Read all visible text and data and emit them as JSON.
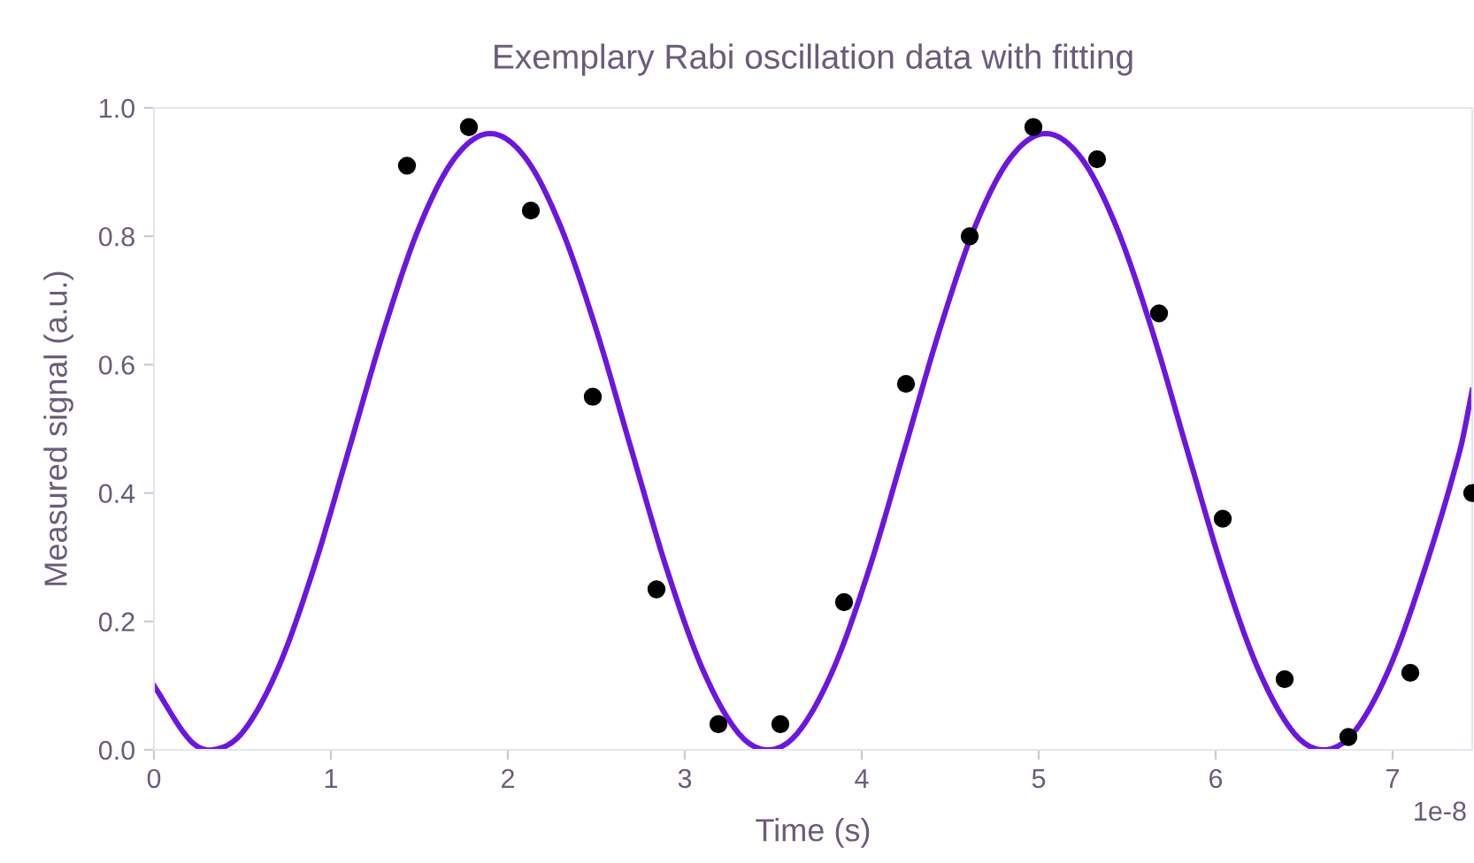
{
  "chart_data": {
    "type": "scatter",
    "title": "Exemplary Rabi oscillation data with fitting",
    "xlabel": "Time (s)",
    "ylabel": "Measured signal (a.u.)",
    "annotations": [
      "1e-8"
    ],
    "xlim": [
      0,
      7.45
    ],
    "xticks": [
      0,
      1,
      2,
      3,
      4,
      5,
      6,
      7
    ],
    "ylim": [
      0,
      1.0
    ],
    "yticks": [
      {
        "value": 0,
        "label": "0.0"
      },
      0.2,
      0.4,
      0.6,
      0.8,
      {
        "value": 1.0,
        "label": "1.0"
      }
    ],
    "grid": false,
    "legend": false,
    "series": [
      {
        "type": "line",
        "color": "#6c16e0",
        "marker": "none",
        "line_style": "solid",
        "x": [
          0,
          0.2,
          0.33,
          0.5,
          0.7,
          0.9,
          1.1,
          1.3,
          1.5,
          1.7,
          1.9,
          2.1,
          2.3,
          2.5,
          2.7,
          2.9,
          3.1,
          3.3,
          3.47,
          3.64,
          3.84,
          4.04,
          4.24,
          4.44,
          4.64,
          4.84,
          5.04,
          5.24,
          5.44,
          5.64,
          5.84,
          6.04,
          6.24,
          6.44,
          6.61,
          6.78,
          6.98,
          7.18,
          7.38,
          7.45
        ],
        "values": [
          0.1,
          0.016,
          0,
          0.027,
          0.126,
          0.28,
          0.466,
          0.654,
          0.815,
          0.922,
          0.96,
          0.922,
          0.814,
          0.654,
          0.466,
          0.28,
          0.126,
          0.027,
          0,
          0.027,
          0.126,
          0.28,
          0.466,
          0.654,
          0.815,
          0.922,
          0.96,
          0.922,
          0.814,
          0.654,
          0.466,
          0.28,
          0.126,
          0.027,
          0,
          0.027,
          0.126,
          0.28,
          0.466,
          0.56
        ]
      },
      {
        "color": "#000000",
        "marker": "circle",
        "x": [
          1.43,
          1.78,
          2.13,
          2.48,
          2.84,
          3.19,
          3.54,
          3.9,
          4.25,
          4.61,
          4.97,
          5.33,
          5.68,
          6.04,
          6.39,
          6.75,
          7.1,
          7.45
        ],
        "values": [
          0.91,
          0.97,
          0.84,
          0.55,
          0.25,
          0.04,
          0.04,
          0.23,
          0.57,
          0.8,
          0.97,
          0.92,
          0.68,
          0.36,
          0.11,
          0.02,
          0.12,
          0.4
        ]
      }
    ]
  }
}
